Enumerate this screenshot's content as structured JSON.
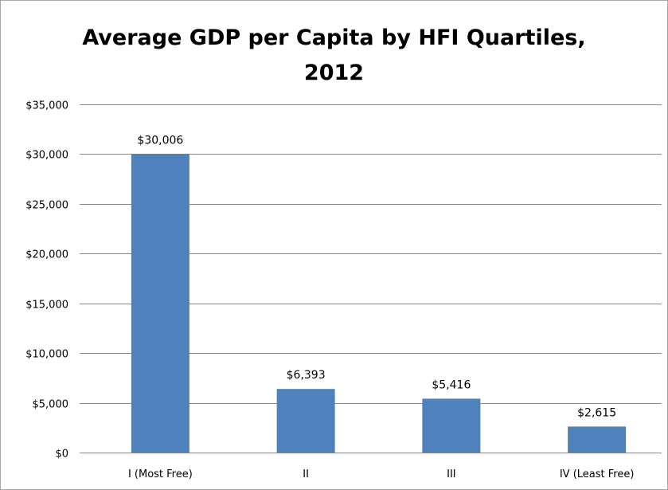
{
  "chart_data": {
    "type": "bar",
    "title_lines": [
      "Average GDP per Capita by HFI Quartiles,",
      "2012"
    ],
    "categories": [
      "I (Most Free)",
      "II",
      "III",
      "IV (Least Free)"
    ],
    "values": [
      30006,
      6393,
      5416,
      2615
    ],
    "data_labels": [
      "$30,006",
      "$6,393",
      "$5,416",
      "$2,615"
    ],
    "y_ticks": [
      0,
      5000,
      10000,
      15000,
      20000,
      25000,
      30000,
      35000
    ],
    "y_tick_labels": [
      "$0",
      "$5,000",
      "$10,000",
      "$15,000",
      "$20,000",
      "$25,000",
      "$30,000",
      "$35,000"
    ],
    "ylim": [
      0,
      35000
    ],
    "xlabel": "",
    "ylabel": "",
    "grid": true,
    "legend": "none",
    "bar_color": "#4f81bd"
  }
}
